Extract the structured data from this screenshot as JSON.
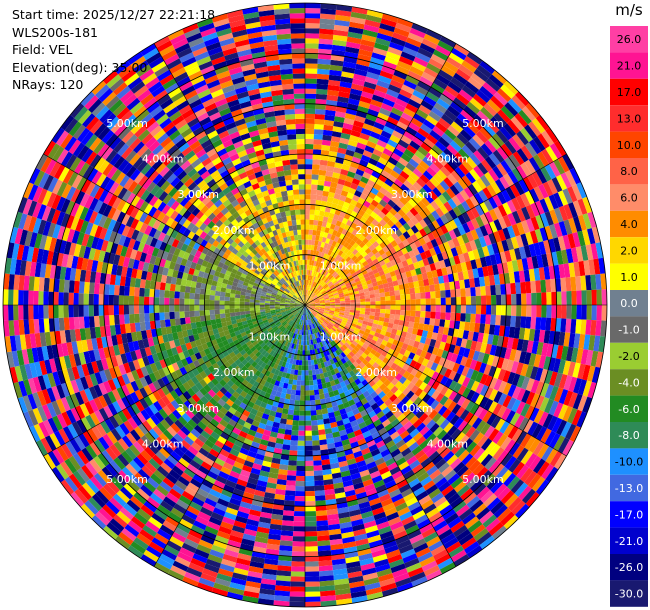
{
  "info": {
    "start_time": "Start time: 2025/12/27 22:21:18",
    "instrument": "WLS200s-181",
    "field": "Field: VEL",
    "elevation": "Elevation(deg): 35.00",
    "nrays": "NRays: 120"
  },
  "colorbar": {
    "unit": "m/s",
    "labels": [
      "26.0",
      "21.0",
      "17.0",
      "13.0",
      "10.0",
      "8.0",
      "6.0",
      "4.0",
      "2.0",
      "1.0",
      "0.0",
      "-1.0",
      "-2.0",
      "-4.0",
      "-6.0",
      "-8.0",
      "-10.0",
      "-13.0",
      "-17.0",
      "-21.0",
      "-26.0",
      "-30.0"
    ],
    "colors": [
      "#ff3fa4",
      "#ff1493",
      "#ff0000",
      "#ff2d2d",
      "#ff4500",
      "#ff6347",
      "#ff8c69",
      "#ff8c00",
      "#ffd700",
      "#ffff00",
      "#708090",
      "#696969",
      "#9acd32",
      "#6b8e23",
      "#228b22",
      "#2e8b57",
      "#1e90ff",
      "#4169e1",
      "#0000ff",
      "#0000cd",
      "#000080",
      "#191970"
    ]
  },
  "chart_data": {
    "type": "ppi",
    "field": "VEL",
    "units": "m/s",
    "elevation_deg": 35.0,
    "nrays": 120,
    "range_rings_km": [
      1,
      2,
      3,
      4,
      5
    ],
    "range_labels": [
      "1.00km",
      "2.00km",
      "3.00km",
      "4.00km",
      "5.00km"
    ],
    "max_range_km": 6.0,
    "sectors": [
      {
        "from_deg": 0,
        "to_deg": 55,
        "mean": 4.5,
        "spread": 3.0
      },
      {
        "from_deg": 55,
        "to_deg": 140,
        "mean": 6.0,
        "spread": 4.0
      },
      {
        "from_deg": 140,
        "to_deg": 200,
        "mean": -9.0,
        "spread": 6.0
      },
      {
        "from_deg": 200,
        "to_deg": 260,
        "mean": -5.0,
        "spread": 3.0
      },
      {
        "from_deg": 260,
        "to_deg": 300,
        "mean": -1.5,
        "spread": 2.5
      },
      {
        "from_deg": 300,
        "to_deg": 360,
        "mean": 1.5,
        "spread": 4.0
      }
    ],
    "noise_start_km": 2.3
  }
}
